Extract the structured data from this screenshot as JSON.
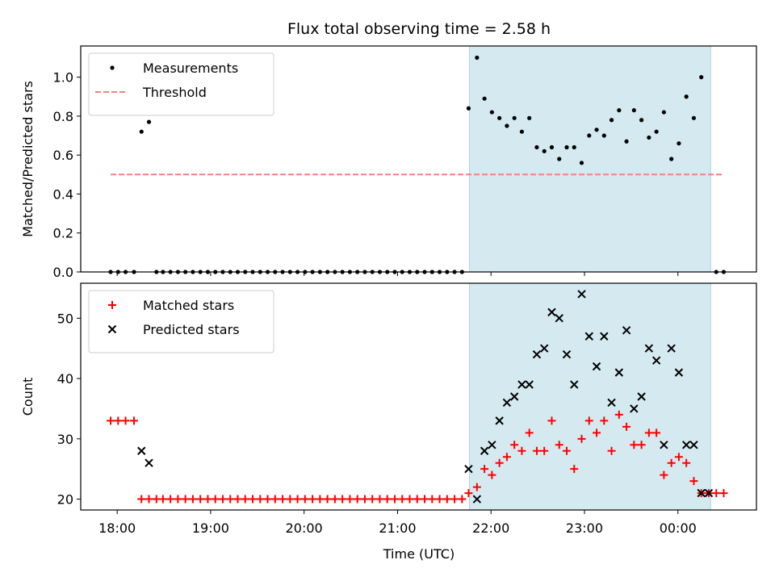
{
  "chart_data": {
    "title": "Flux total observing time = 2.58 h",
    "xlabel": "Time (UTC)",
    "x_ticks": [
      "18:00",
      "19:00",
      "20:00",
      "21:00",
      "22:00",
      "23:00",
      "00:00"
    ],
    "x_tick_hours": [
      18,
      19,
      20,
      21,
      22,
      23,
      24
    ],
    "xlim": [
      17.61,
      24.84
    ],
    "observing_window": [
      21.77,
      24.35
    ],
    "window_color": "#d4eaf0",
    "panels": [
      {
        "type": "scatter",
        "ylabel": "Matched/Predicted stars",
        "ylim": [
          0,
          1.16
        ],
        "y_ticks": [
          0.0,
          0.2,
          0.4,
          0.6,
          0.8,
          1.0
        ],
        "y_tick_labels": [
          "0.0",
          "0.2",
          "0.4",
          "0.6",
          "0.8",
          "1.0"
        ],
        "legend_position": "top-left",
        "threshold": {
          "name": "Threshold",
          "value": 0.5,
          "x_range": [
            17.93,
            24.48
          ],
          "color": "#f77f7f"
        },
        "series": [
          {
            "name": "Measurements",
            "marker": "dot",
            "color": "#000000",
            "points": [
              [
                17.93,
                0
              ],
              [
                18.01,
                0
              ],
              [
                18.09,
                0
              ],
              [
                18.18,
                0
              ],
              [
                18.26,
                0.72
              ],
              [
                18.34,
                0.77
              ],
              [
                18.42,
                0
              ],
              [
                18.49,
                0
              ],
              [
                18.57,
                0
              ],
              [
                18.65,
                0
              ],
              [
                18.73,
                0
              ],
              [
                18.81,
                0
              ],
              [
                18.89,
                0
              ],
              [
                18.97,
                0
              ],
              [
                19.05,
                0
              ],
              [
                19.13,
                0
              ],
              [
                19.21,
                0
              ],
              [
                19.29,
                0
              ],
              [
                19.37,
                0
              ],
              [
                19.45,
                0
              ],
              [
                19.53,
                0
              ],
              [
                19.61,
                0
              ],
              [
                19.69,
                0
              ],
              [
                19.77,
                0
              ],
              [
                19.85,
                0
              ],
              [
                19.93,
                0
              ],
              [
                20.01,
                0
              ],
              [
                20.09,
                0
              ],
              [
                20.17,
                0
              ],
              [
                20.25,
                0
              ],
              [
                20.33,
                0
              ],
              [
                20.41,
                0
              ],
              [
                20.49,
                0
              ],
              [
                20.57,
                0
              ],
              [
                20.65,
                0
              ],
              [
                20.73,
                0
              ],
              [
                20.81,
                0
              ],
              [
                20.89,
                0
              ],
              [
                20.97,
                0
              ],
              [
                21.05,
                0
              ],
              [
                21.13,
                0
              ],
              [
                21.21,
                0
              ],
              [
                21.29,
                0
              ],
              [
                21.37,
                0
              ],
              [
                21.45,
                0
              ],
              [
                21.53,
                0
              ],
              [
                21.61,
                0
              ],
              [
                21.69,
                0
              ],
              [
                21.76,
                0.84
              ],
              [
                21.85,
                1.1
              ],
              [
                21.93,
                0.89
              ],
              [
                22.01,
                0.82
              ],
              [
                22.09,
                0.79
              ],
              [
                22.17,
                0.75
              ],
              [
                22.25,
                0.79
              ],
              [
                22.33,
                0.72
              ],
              [
                22.41,
                0.79
              ],
              [
                22.49,
                0.64
              ],
              [
                22.57,
                0.62
              ],
              [
                22.65,
                0.64
              ],
              [
                22.73,
                0.58
              ],
              [
                22.81,
                0.64
              ],
              [
                22.89,
                0.64
              ],
              [
                22.97,
                0.56
              ],
              [
                23.05,
                0.7
              ],
              [
                23.13,
                0.73
              ],
              [
                23.21,
                0.7
              ],
              [
                23.29,
                0.78
              ],
              [
                23.37,
                0.83
              ],
              [
                23.45,
                0.67
              ],
              [
                23.53,
                0.83
              ],
              [
                23.61,
                0.78
              ],
              [
                23.69,
                0.69
              ],
              [
                23.77,
                0.72
              ],
              [
                23.85,
                0.82
              ],
              [
                23.93,
                0.58
              ],
              [
                24.01,
                0.66
              ],
              [
                24.09,
                0.9
              ],
              [
                24.17,
                0.79
              ],
              [
                24.25,
                1.0
              ],
              [
                24.41,
                0
              ],
              [
                24.49,
                0
              ]
            ]
          }
        ]
      },
      {
        "type": "scatter",
        "ylabel": "Count",
        "ylim": [
          18.2,
          55.8
        ],
        "y_ticks": [
          20,
          30,
          40,
          50
        ],
        "y_tick_labels": [
          "20",
          "30",
          "40",
          "50"
        ],
        "legend_position": "top-left",
        "series": [
          {
            "name": "Matched stars",
            "marker": "plus",
            "color": "#ff0000",
            "points": [
              [
                17.93,
                33
              ],
              [
                18.01,
                33
              ],
              [
                18.09,
                33
              ],
              [
                18.18,
                33
              ],
              [
                18.26,
                20
              ],
              [
                18.34,
                20
              ],
              [
                18.42,
                20
              ],
              [
                18.49,
                20
              ],
              [
                18.57,
                20
              ],
              [
                18.65,
                20
              ],
              [
                18.73,
                20
              ],
              [
                18.81,
                20
              ],
              [
                18.89,
                20
              ],
              [
                18.97,
                20
              ],
              [
                19.05,
                20
              ],
              [
                19.13,
                20
              ],
              [
                19.21,
                20
              ],
              [
                19.29,
                20
              ],
              [
                19.37,
                20
              ],
              [
                19.45,
                20
              ],
              [
                19.53,
                20
              ],
              [
                19.61,
                20
              ],
              [
                19.69,
                20
              ],
              [
                19.77,
                20
              ],
              [
                19.85,
                20
              ],
              [
                19.93,
                20
              ],
              [
                20.01,
                20
              ],
              [
                20.09,
                20
              ],
              [
                20.17,
                20
              ],
              [
                20.25,
                20
              ],
              [
                20.33,
                20
              ],
              [
                20.41,
                20
              ],
              [
                20.49,
                20
              ],
              [
                20.57,
                20
              ],
              [
                20.65,
                20
              ],
              [
                20.73,
                20
              ],
              [
                20.81,
                20
              ],
              [
                20.89,
                20
              ],
              [
                20.97,
                20
              ],
              [
                21.05,
                20
              ],
              [
                21.13,
                20
              ],
              [
                21.21,
                20
              ],
              [
                21.29,
                20
              ],
              [
                21.37,
                20
              ],
              [
                21.45,
                20
              ],
              [
                21.53,
                20
              ],
              [
                21.61,
                20
              ],
              [
                21.69,
                20
              ],
              [
                21.76,
                21
              ],
              [
                21.85,
                22
              ],
              [
                21.93,
                25
              ],
              [
                22.01,
                24
              ],
              [
                22.09,
                26
              ],
              [
                22.17,
                27
              ],
              [
                22.25,
                29
              ],
              [
                22.33,
                28
              ],
              [
                22.41,
                31
              ],
              [
                22.49,
                28
              ],
              [
                22.57,
                28
              ],
              [
                22.65,
                33
              ],
              [
                22.73,
                29
              ],
              [
                22.81,
                28
              ],
              [
                22.89,
                25
              ],
              [
                22.97,
                30
              ],
              [
                23.05,
                33
              ],
              [
                23.13,
                31
              ],
              [
                23.21,
                33
              ],
              [
                23.29,
                28
              ],
              [
                23.37,
                34
              ],
              [
                23.45,
                32
              ],
              [
                23.53,
                29
              ],
              [
                23.61,
                29
              ],
              [
                23.69,
                31
              ],
              [
                23.77,
                31
              ],
              [
                23.85,
                24
              ],
              [
                23.93,
                26
              ],
              [
                24.01,
                27
              ],
              [
                24.09,
                26
              ],
              [
                24.17,
                23
              ],
              [
                24.25,
                21
              ],
              [
                24.33,
                21
              ],
              [
                24.41,
                21
              ],
              [
                24.49,
                21
              ]
            ]
          },
          {
            "name": "Predicted stars",
            "marker": "x",
            "color": "#000000",
            "points": [
              [
                18.26,
                28
              ],
              [
                18.34,
                26
              ],
              [
                21.76,
                25
              ],
              [
                21.85,
                20
              ],
              [
                21.93,
                28
              ],
              [
                22.01,
                29
              ],
              [
                22.09,
                33
              ],
              [
                22.17,
                36
              ],
              [
                22.25,
                37
              ],
              [
                22.33,
                39
              ],
              [
                22.41,
                39
              ],
              [
                22.49,
                44
              ],
              [
                22.57,
                45
              ],
              [
                22.65,
                51
              ],
              [
                22.73,
                50
              ],
              [
                22.81,
                44
              ],
              [
                22.89,
                39
              ],
              [
                22.97,
                54
              ],
              [
                23.05,
                47
              ],
              [
                23.13,
                42
              ],
              [
                23.21,
                47
              ],
              [
                23.29,
                36
              ],
              [
                23.37,
                41
              ],
              [
                23.45,
                48
              ],
              [
                23.53,
                35
              ],
              [
                23.61,
                37
              ],
              [
                23.69,
                45
              ],
              [
                23.77,
                43
              ],
              [
                23.85,
                29
              ],
              [
                23.93,
                45
              ],
              [
                24.01,
                41
              ],
              [
                24.09,
                29
              ],
              [
                24.17,
                29
              ],
              [
                24.25,
                21
              ],
              [
                24.33,
                21
              ]
            ]
          }
        ]
      }
    ]
  }
}
